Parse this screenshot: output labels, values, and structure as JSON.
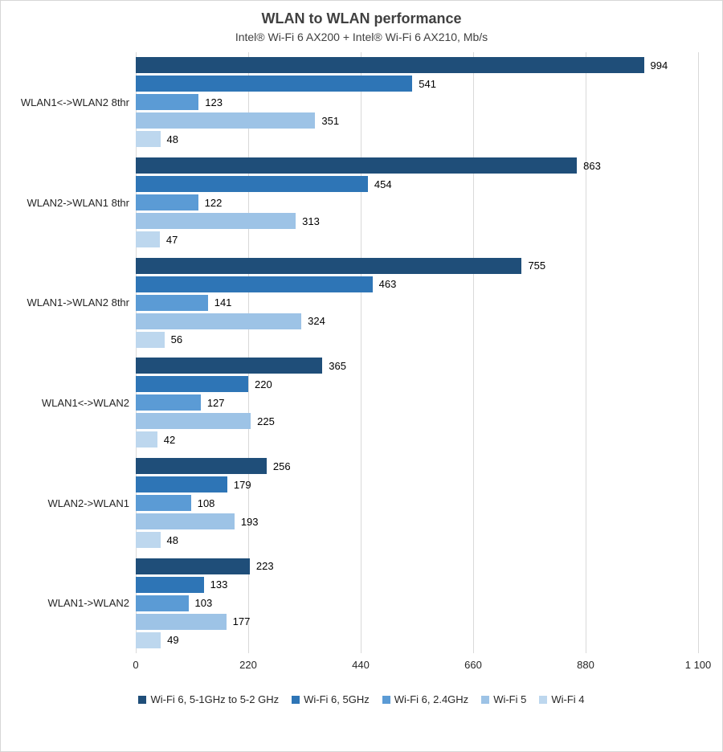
{
  "title": "WLAN to WLAN performance",
  "subtitle": "Intel® Wi-Fi 6 AX200 + Intel® Wi-Fi 6 AX210, Mb/s",
  "chart_data": {
    "type": "bar",
    "orientation": "horizontal",
    "title": "WLAN to WLAN performance",
    "subtitle": "Intel® Wi-Fi 6 AX200 + Intel® Wi-Fi 6 AX210, Mb/s",
    "unit": "Mb/s",
    "categories": [
      "WLAN1<->WLAN2 8thr",
      "WLAN2->WLAN1 8thr",
      "WLAN1->WLAN2 8thr",
      "WLAN1<->WLAN2",
      "WLAN2->WLAN1",
      "WLAN1->WLAN2"
    ],
    "series": [
      {
        "name": "Wi-Fi 6, 5-1GHz to 5-2 GHz",
        "color": "#1f4e79",
        "values": [
          994,
          863,
          755,
          365,
          256,
          223
        ]
      },
      {
        "name": "Wi-Fi 6, 5GHz",
        "color": "#2e75b6",
        "values": [
          541,
          454,
          463,
          220,
          179,
          133
        ]
      },
      {
        "name": "Wi-Fi 6, 2.4GHz",
        "color": "#5b9bd5",
        "values": [
          123,
          122,
          141,
          127,
          108,
          103
        ]
      },
      {
        "name": "Wi-Fi 5",
        "color": "#9dc3e6",
        "values": [
          351,
          313,
          324,
          225,
          193,
          177
        ]
      },
      {
        "name": "Wi-Fi 4",
        "color": "#bdd7ee",
        "values": [
          48,
          47,
          56,
          42,
          48,
          49
        ]
      }
    ],
    "x_axis": {
      "min": 0,
      "max": 1100,
      "ticks": [
        0,
        220,
        440,
        660,
        880,
        1100
      ],
      "tick_labels": [
        "0",
        "220",
        "440",
        "660",
        "880",
        "1 100"
      ]
    },
    "grid": true,
    "legend_position": "bottom",
    "value_labels": true
  }
}
